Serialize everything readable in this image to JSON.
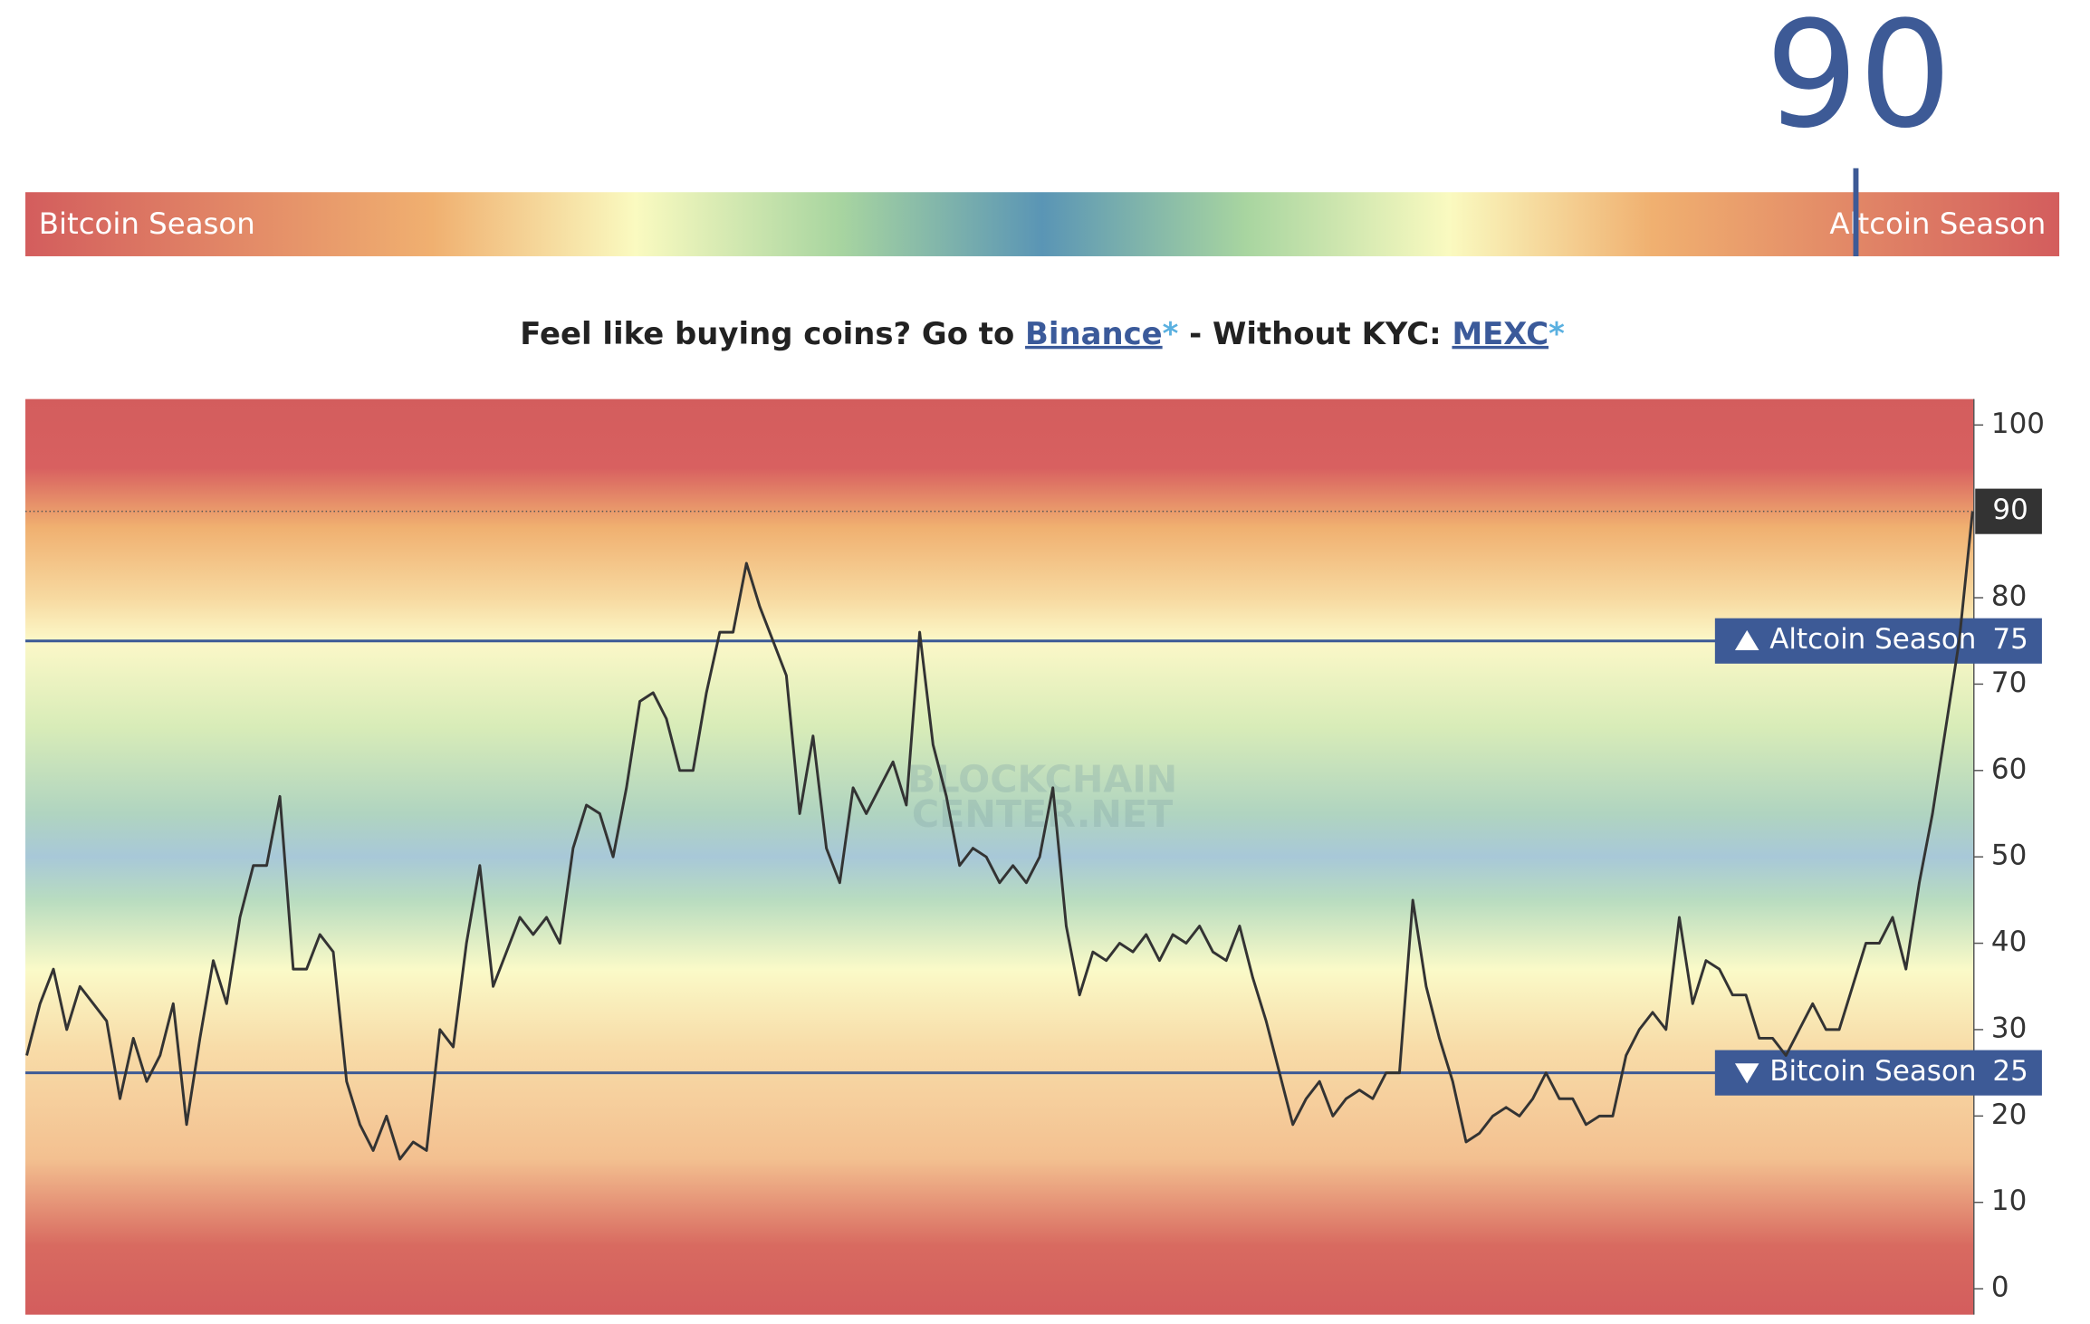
{
  "index": {
    "value": 90,
    "left_label": "Bitcoin Season",
    "right_label": "Altcoin Season",
    "range": [
      0,
      100
    ]
  },
  "promo": {
    "text1": "Feel like buying coins? Go to ",
    "link1": "Binance",
    "star1": "*",
    "text2": " - Without KYC: ",
    "link2": "MEXC",
    "star2": "*"
  },
  "chart_data": {
    "type": "line",
    "color": "#333333",
    "values": [
      27,
      33,
      37,
      30,
      35,
      33,
      31,
      22,
      29,
      24,
      27,
      33,
      19,
      29,
      38,
      33,
      43,
      49,
      49,
      57,
      37,
      37,
      41,
      39,
      24,
      19,
      16,
      20,
      15,
      17,
      16,
      30,
      28,
      40,
      49,
      35,
      39,
      43,
      41,
      43,
      40,
      51,
      56,
      55,
      50,
      58,
      68,
      69,
      66,
      60,
      60,
      69,
      76,
      76,
      84,
      79,
      75,
      71,
      55,
      64,
      51,
      47,
      58,
      55,
      58,
      61,
      56,
      76,
      63,
      57,
      49,
      51,
      50,
      47,
      49,
      47,
      50,
      58,
      42,
      34,
      39,
      38,
      40,
      39,
      41,
      38,
      41,
      40,
      42,
      39,
      38,
      42,
      36,
      31,
      25,
      19,
      22,
      24,
      20,
      22,
      23,
      22,
      25,
      25,
      45,
      35,
      29,
      24,
      17,
      18,
      20,
      21,
      20,
      22,
      25,
      22,
      22,
      19,
      20,
      20,
      27,
      30,
      32,
      30,
      43,
      33,
      38,
      37,
      34,
      34,
      29,
      29,
      27,
      30,
      33,
      30,
      30,
      35,
      40,
      40,
      43,
      37,
      47,
      55,
      65,
      75,
      90
    ],
    "ylim": [
      -3,
      103
    ],
    "yticks": [
      0,
      10,
      20,
      30,
      40,
      50,
      60,
      70,
      80,
      100
    ],
    "reference_lines": [
      {
        "value": 75,
        "label": "Altcoin Season"
      },
      {
        "value": 25,
        "label": "Bitcoin Season"
      }
    ],
    "watermark": [
      "BLOCKCHAIN",
      "CENTER.NET"
    ]
  }
}
